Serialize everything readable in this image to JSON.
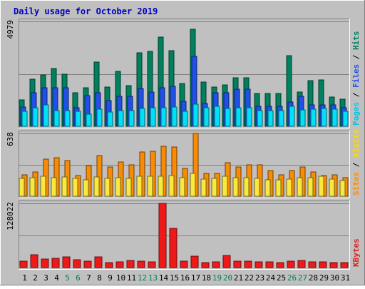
{
  "chart_data": {
    "type": "bar",
    "title": "Daily usage for October 2019",
    "categories": [
      "1",
      "2",
      "3",
      "4",
      "5",
      "6",
      "7",
      "8",
      "9",
      "10",
      "11",
      "12",
      "13",
      "14",
      "15",
      "16",
      "17",
      "18",
      "19",
      "20",
      "21",
      "22",
      "23",
      "24",
      "25",
      "26",
      "27",
      "28",
      "29",
      "30",
      "31"
    ],
    "weekend_days": [
      "5",
      "6",
      "12",
      "13",
      "19",
      "20",
      "26",
      "27"
    ],
    "panels": [
      {
        "id": "hits",
        "ymax_label": "4979",
        "ylim": [
          0,
          4979
        ],
        "axis_label_parts": [
          "Pages",
          "Files",
          "Hits"
        ],
        "axis_label_colors": [
          "#00c8e8",
          "#2050e8",
          "#007f5f"
        ],
        "series": [
          {
            "name": "Hits",
            "color": "#00805f",
            "values": [
              1240,
              2240,
              2440,
              2740,
              2480,
              1600,
              1820,
              3060,
              1860,
              2600,
              1940,
              3500,
              3540,
              4220,
              3580,
              2040,
              4620,
              2090,
              1860,
              1980,
              2320,
              2320,
              1550,
              1550,
              1550,
              3350,
              1630,
              2180,
              2200,
              1400,
              1300
            ]
          },
          {
            "name": "Files",
            "color": "#2050e8",
            "values": [
              920,
              1600,
              1820,
              1840,
              1840,
              880,
              1440,
              1580,
              1230,
              1420,
              1420,
              1780,
              1630,
              1840,
              1900,
              1180,
              3330,
              1100,
              1600,
              1600,
              1760,
              1760,
              950,
              950,
              950,
              1140,
              1430,
              1010,
              1010,
              1010,
              880
            ]
          },
          {
            "name": "Pages",
            "color": "#00e0f8",
            "values": [
              700,
              870,
              1030,
              740,
              760,
              700,
              590,
              810,
              680,
              750,
              730,
              840,
              890,
              890,
              920,
              720,
              1060,
              880,
              950,
              860,
              880,
              880,
              760,
              750,
              750,
              940,
              780,
              810,
              830,
              800,
              700
            ]
          }
        ]
      },
      {
        "id": "visits",
        "ymax_label": "638",
        "ylim": [
          0,
          638
        ],
        "axis_label_parts": [
          "Sites",
          "Visits"
        ],
        "axis_label_colors": [
          "#ff8c00",
          "#ffd800"
        ],
        "series": [
          {
            "name": "Visits",
            "color": "#f98b05",
            "values": [
              220,
              250,
              380,
              390,
              360,
              210,
              310,
              410,
              300,
              350,
              320,
              450,
              460,
              510,
              500,
              280,
              640,
              230,
              230,
              340,
              300,
              320,
              320,
              260,
              220,
              260,
              300,
              250,
              210,
              220,
              190
            ]
          },
          {
            "name": "Sites",
            "color": "#f8e840",
            "values": [
              180,
              190,
              200,
              190,
              195,
              180,
              170,
              195,
              180,
              185,
              180,
              200,
              200,
              205,
              210,
              185,
              230,
              175,
              180,
              200,
              185,
              190,
              180,
              170,
              165,
              175,
              185,
              190,
              200,
              175,
              160
            ]
          }
        ]
      },
      {
        "id": "kbytes",
        "ymax_label": "128022",
        "ylim": [
          0,
          128022
        ],
        "axis_label_parts": [
          "KBytes"
        ],
        "axis_label_colors": [
          "#e02020"
        ],
        "series": [
          {
            "name": "KBytes",
            "color": "#ee1a1a",
            "values": [
              12500,
              25000,
              17500,
              18500,
              21000,
              16000,
              12500,
              21000,
              10500,
              11000,
              14500,
              13500,
              12000,
              128022,
              78000,
              13000,
              23000,
              9500,
              11000,
              24000,
              12500,
              12500,
              12000,
              11000,
              10500,
              13500,
              14000,
              12000,
              11500,
              10500,
              10000
            ]
          }
        ]
      }
    ]
  }
}
